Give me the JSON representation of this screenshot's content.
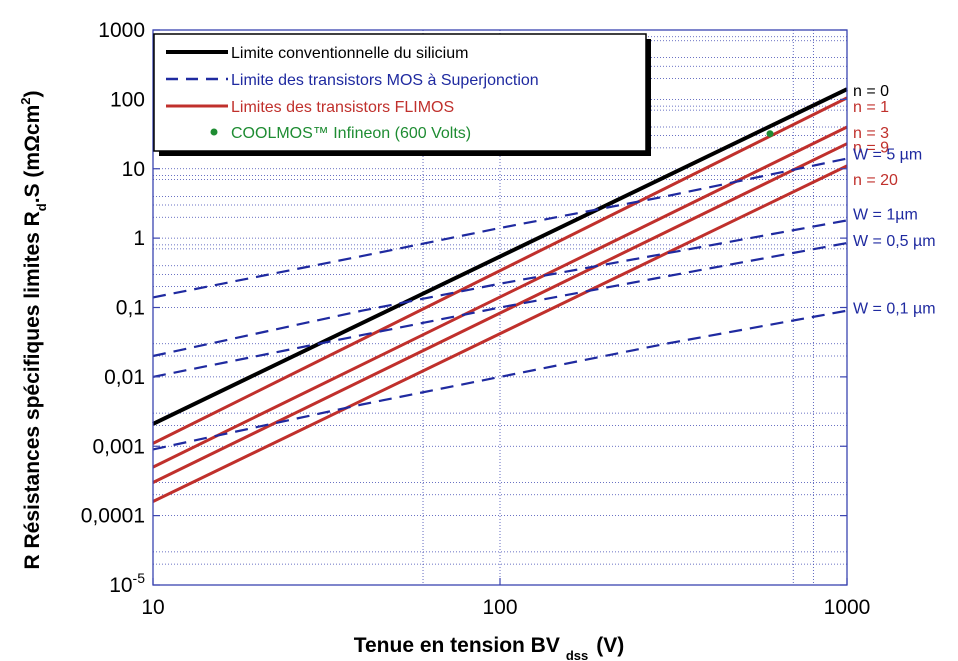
{
  "chart_data": {
    "type": "line",
    "title": "",
    "xlabel": "Tenue en tension BV",
    "xlabel_sub": "dss",
    "xlabel_unit": "(V)",
    "ylabel": "R Résistances spécifiques limites R",
    "ylabel_sub": "d",
    "ylabel_mid": ".S (m",
    "ylabel_omega": "Ω",
    "ylabel_unit": "cm",
    "ylabel_sup": "2",
    "ylabel_end": ")",
    "xscale": "log",
    "yscale": "log",
    "xlim": [
      10,
      1000
    ],
    "ylim": [
      1e-05,
      1000
    ],
    "x_ticks": [
      {
        "value": 10,
        "label": "10"
      },
      {
        "value": 100,
        "label": "100"
      },
      {
        "value": 1000,
        "label": "1000"
      }
    ],
    "y_ticks": [
      {
        "value": 1e-05,
        "base": "10",
        "exp": "-5"
      },
      {
        "value": 0.0001,
        "base": "0,0001",
        "exp": ""
      },
      {
        "value": 0.001,
        "base": "0,001",
        "exp": ""
      },
      {
        "value": 0.01,
        "base": "0,01",
        "exp": ""
      },
      {
        "value": 0.1,
        "base": "0,1",
        "exp": ""
      },
      {
        "value": 1,
        "base": "1",
        "exp": ""
      },
      {
        "value": 10,
        "base": "10",
        "exp": ""
      },
      {
        "value": 100,
        "base": "100",
        "exp": ""
      },
      {
        "value": 1000,
        "base": "1000",
        "exp": ""
      }
    ],
    "grid": "sparse",
    "grid_x": [
      60,
      700,
      800
    ],
    "grid_y": [
      2e-05,
      3e-05,
      0.0002,
      0.0003,
      0.002,
      0.003,
      0.02,
      0.03,
      0.2,
      0.3,
      0.4,
      0.7,
      0.8,
      2,
      3,
      4,
      7,
      8,
      20,
      30,
      40,
      70,
      80,
      200,
      300,
      400,
      700,
      800
    ],
    "legend_position": "top-left",
    "colors": {
      "black": "#000000",
      "blue": "#1f2aa0",
      "red": "#c0302c",
      "green": "#1e8c32",
      "grid": "#3a44b0",
      "axis": "#3a44b0"
    },
    "legend": [
      {
        "label": "Limite conventionnelle du silicium",
        "style": "black"
      },
      {
        "label": "Limite des transistors MOS à Superjonction",
        "style": "blue-dash"
      },
      {
        "label": "Limites des transistors FLIMOS",
        "style": "red"
      },
      {
        "label": "COOLMOS™ Infineon (600 Volts)",
        "style": "green-dot"
      }
    ],
    "series": [
      {
        "group": "silicium",
        "label": "n = 0",
        "x": [
          10,
          1000
        ],
        "y": [
          0.0021,
          140
        ]
      },
      {
        "group": "flimos",
        "label": "n = 1",
        "x": [
          10,
          1000
        ],
        "y": [
          0.0011,
          105
        ]
      },
      {
        "group": "flimos",
        "label": "n = 3",
        "x": [
          10,
          1000
        ],
        "y": [
          0.0005,
          40
        ]
      },
      {
        "group": "flimos",
        "label": "n = 9",
        "x": [
          10,
          1000
        ],
        "y": [
          0.0003,
          23
        ]
      },
      {
        "group": "flimos",
        "label": "n = 20",
        "x": [
          10,
          1000
        ],
        "y": [
          0.00016,
          11
        ]
      },
      {
        "group": "superjunction",
        "label": "W = 5 µm",
        "x": [
          10,
          40,
          100,
          300,
          1000
        ],
        "y": [
          0.14,
          0.55,
          1.4,
          4,
          14
        ]
      },
      {
        "group": "superjunction",
        "label": "W = 1µm",
        "x": [
          10,
          40,
          100,
          300,
          1000
        ],
        "y": [
          0.02,
          0.09,
          0.22,
          0.6,
          1.8
        ]
      },
      {
        "group": "superjunction",
        "label": "W = 0,5 µm",
        "x": [
          10,
          40,
          100,
          300,
          1000
        ],
        "y": [
          0.01,
          0.04,
          0.1,
          0.28,
          0.85
        ]
      },
      {
        "group": "superjunction",
        "label": "W = 0,1 µm",
        "x": [
          10,
          40,
          100,
          300,
          1000
        ],
        "y": [
          0.0009,
          0.004,
          0.01,
          0.03,
          0.09
        ]
      }
    ],
    "points": [
      {
        "label": "COOLMOS™ Infineon (600 Volts)",
        "x": 600,
        "y": 32
      }
    ]
  }
}
